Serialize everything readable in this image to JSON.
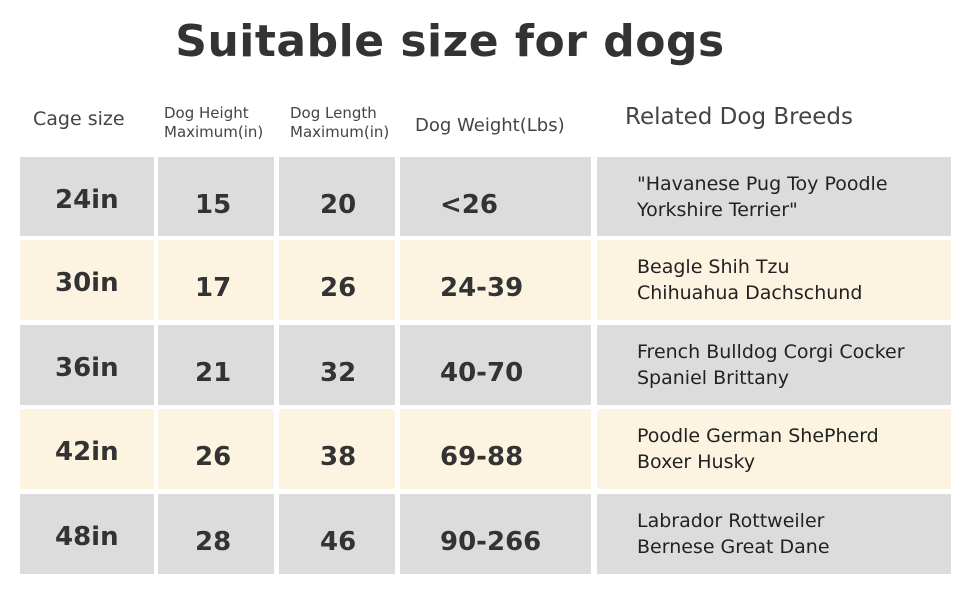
{
  "title": "Suitable size for dogs",
  "headers": {
    "cage": "Cage size",
    "height_1": "Dog Height",
    "height_2": "Maximum(in)",
    "length_1": "Dog Length",
    "length_2": "Maximum(in)",
    "weight": "Dog Weight(Lbs)",
    "breeds": "Related Dog Breeds"
  },
  "colors": {
    "grey_row": "#dcdcdc",
    "cream_row": "#fdf3e1",
    "text": "#333333"
  },
  "rows": [
    {
      "cage": "24in",
      "height": "15",
      "length": "20",
      "weight": "<26",
      "breeds_1": "\"Havanese Pug Toy Poodle",
      "breeds_2": "Yorkshire Terrier\""
    },
    {
      "cage": "30in",
      "height": "17",
      "length": "26",
      "weight": "24-39",
      "breeds_1": "Beagle Shih Tzu",
      "breeds_2": "Chihuahua Dachschund"
    },
    {
      "cage": "36in",
      "height": "21",
      "length": "32",
      "weight": "40-70",
      "breeds_1": "French Bulldog Corgi Cocker",
      "breeds_2": "Spaniel Brittany"
    },
    {
      "cage": "42in",
      "height": "26",
      "length": "38",
      "weight": "69-88",
      "breeds_1": "Poodle German ShePherd",
      "breeds_2": "Boxer Husky"
    },
    {
      "cage": "48in",
      "height": "28",
      "length": "46",
      "weight": "90-266",
      "breeds_1": "Labrador Rottweiler",
      "breeds_2": "Bernese Great Dane"
    }
  ]
}
